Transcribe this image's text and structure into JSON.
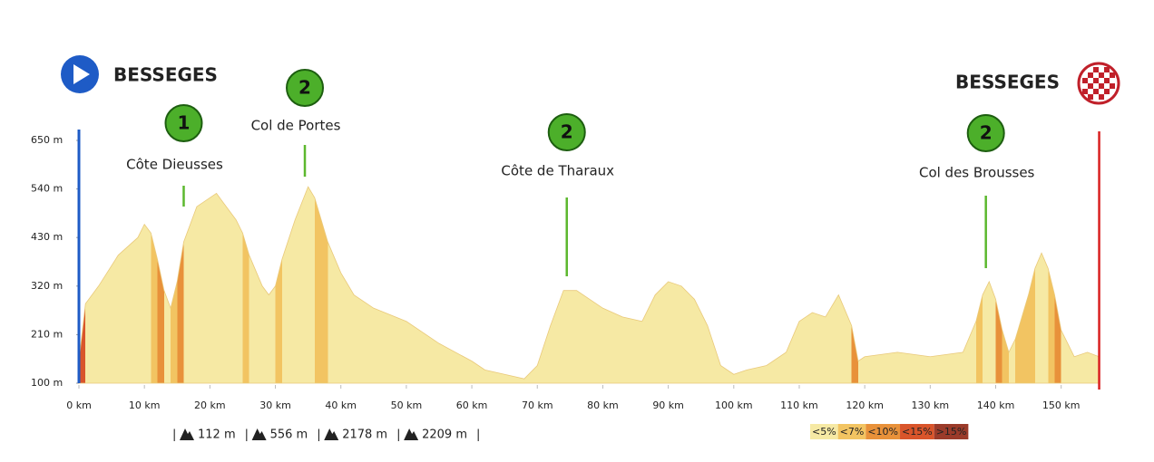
{
  "chart_data": {
    "type": "elevation",
    "start_label": "BESSEGES",
    "finish_label": "BESSEGES",
    "series": [
      {
        "name": "Elevation",
        "x": [
          0,
          1,
          3,
          6,
          9,
          10,
          11,
          12,
          13,
          14,
          15,
          16,
          17,
          18,
          20,
          21,
          22,
          24,
          25,
          26,
          28,
          29,
          30,
          31,
          33,
          35,
          36,
          38,
          40,
          42,
          45,
          50,
          55,
          60,
          62,
          65,
          68,
          70,
          72,
          74,
          76,
          78,
          80,
          83,
          86,
          88,
          90,
          92,
          94,
          96,
          98,
          100,
          102,
          105,
          108,
          110,
          112,
          114,
          116,
          118,
          119,
          120,
          125,
          130,
          135,
          137,
          138,
          139,
          140,
          141,
          142,
          143,
          145,
          146,
          147,
          148,
          149,
          150,
          152,
          154,
          155.8
        ],
        "values": [
          150,
          280,
          320,
          390,
          430,
          460,
          440,
          380,
          310,
          270,
          330,
          420,
          460,
          500,
          520,
          530,
          510,
          470,
          440,
          390,
          320,
          300,
          320,
          380,
          470,
          545,
          520,
          420,
          350,
          300,
          270,
          240,
          190,
          150,
          130,
          120,
          110,
          140,
          230,
          310,
          310,
          290,
          270,
          250,
          240,
          300,
          330,
          320,
          290,
          230,
          140,
          120,
          130,
          140,
          170,
          240,
          260,
          250,
          300,
          230,
          150,
          160,
          170,
          160,
          170,
          240,
          300,
          330,
          290,
          220,
          170,
          200,
          300,
          360,
          395,
          360,
          300,
          220,
          160,
          170,
          160
        ]
      }
    ],
    "xlim": [
      0,
      156
    ],
    "ylim": [
      100,
      650
    ],
    "xticks": [
      {
        "value": 0,
        "label": "0 km"
      },
      {
        "value": 10,
        "label": "10 km"
      },
      {
        "value": 20,
        "label": "20 km"
      },
      {
        "value": 30,
        "label": "30 km"
      },
      {
        "value": 40,
        "label": "40 km"
      },
      {
        "value": 50,
        "label": "50 km"
      },
      {
        "value": 60,
        "label": "60 km"
      },
      {
        "value": 70,
        "label": "70 km"
      },
      {
        "value": 80,
        "label": "80 km"
      },
      {
        "value": 90,
        "label": "90 km"
      },
      {
        "value": 100,
        "label": "100 km"
      },
      {
        "value": 110,
        "label": "110 km"
      },
      {
        "value": 120,
        "label": "120 km"
      },
      {
        "value": 130,
        "label": "130 km"
      },
      {
        "value": 140,
        "label": "140 km"
      },
      {
        "value": 150,
        "label": "150 km"
      }
    ],
    "yticks": [
      {
        "value": 100,
        "label": "100 m"
      },
      {
        "value": 210,
        "label": "210 m"
      },
      {
        "value": 320,
        "label": "320 m"
      },
      {
        "value": 430,
        "label": "430 m"
      },
      {
        "value": 540,
        "label": "540 m"
      },
      {
        "value": 650,
        "label": "650 m"
      }
    ],
    "climbs": [
      {
        "name": "Côte Dieusses",
        "category": "1",
        "km": 16
      },
      {
        "name": "Col de Portes",
        "category": "2",
        "km": 34.5
      },
      {
        "name": "Côte de Tharaux",
        "category": "2",
        "km": 74.5
      },
      {
        "name": "Col des Brousses",
        "category": "2",
        "km": 138.5
      }
    ],
    "stats": [
      "112 m",
      "556 m",
      "2178 m",
      "2209 m"
    ],
    "gradient_classes": [
      {
        "label": "<5%",
        "max": 5,
        "color": "#f6e9a4"
      },
      {
        "label": "<7%",
        "max": 7,
        "color": "#f2c462"
      },
      {
        "label": "<10%",
        "max": 10,
        "color": "#e8913a"
      },
      {
        "label": "<15%",
        "max": 15,
        "color": "#d9552b"
      },
      {
        "label": ">15%",
        "max": null,
        "color": "#9b3b2a"
      }
    ]
  }
}
